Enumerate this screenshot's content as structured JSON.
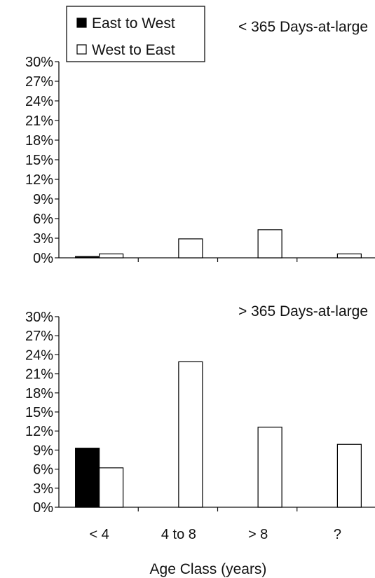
{
  "legend": {
    "items": [
      {
        "label": "East to West",
        "color": "#000000"
      },
      {
        "label": "West to East",
        "color": "#ffffff"
      }
    ]
  },
  "xlabel": "Age Class (years)",
  "chart_data": [
    {
      "type": "bar",
      "subtitle": "< 365 Days-at-large",
      "categories": [
        "< 4",
        "4 to 8",
        "> 8",
        "?"
      ],
      "series": [
        {
          "name": "East to West",
          "values": [
            0.2,
            0,
            0,
            0
          ]
        },
        {
          "name": "West to East",
          "values": [
            0.6,
            2.9,
            4.3,
            0.6
          ]
        }
      ],
      "ylim": [
        0,
        30
      ],
      "yticks": [
        "0%",
        "3%",
        "6%",
        "9%",
        "12%",
        "15%",
        "18%",
        "21%",
        "24%",
        "27%",
        "30%"
      ],
      "grid": false
    },
    {
      "type": "bar",
      "subtitle": "> 365 Days-at-large",
      "categories": [
        "< 4",
        "4 to 8",
        "> 8",
        "?"
      ],
      "series": [
        {
          "name": "East to West",
          "values": [
            9.3,
            0,
            0,
            0
          ]
        },
        {
          "name": "West to East",
          "values": [
            6.2,
            22.9,
            12.6,
            9.9
          ]
        }
      ],
      "ylim": [
        0,
        30
      ],
      "yticks": [
        "0%",
        "3%",
        "6%",
        "9%",
        "12%",
        "15%",
        "18%",
        "21%",
        "24%",
        "27%",
        "30%"
      ],
      "xticklabels": [
        "< 4",
        "4 to 8",
        "> 8",
        "?"
      ],
      "grid": false
    }
  ]
}
